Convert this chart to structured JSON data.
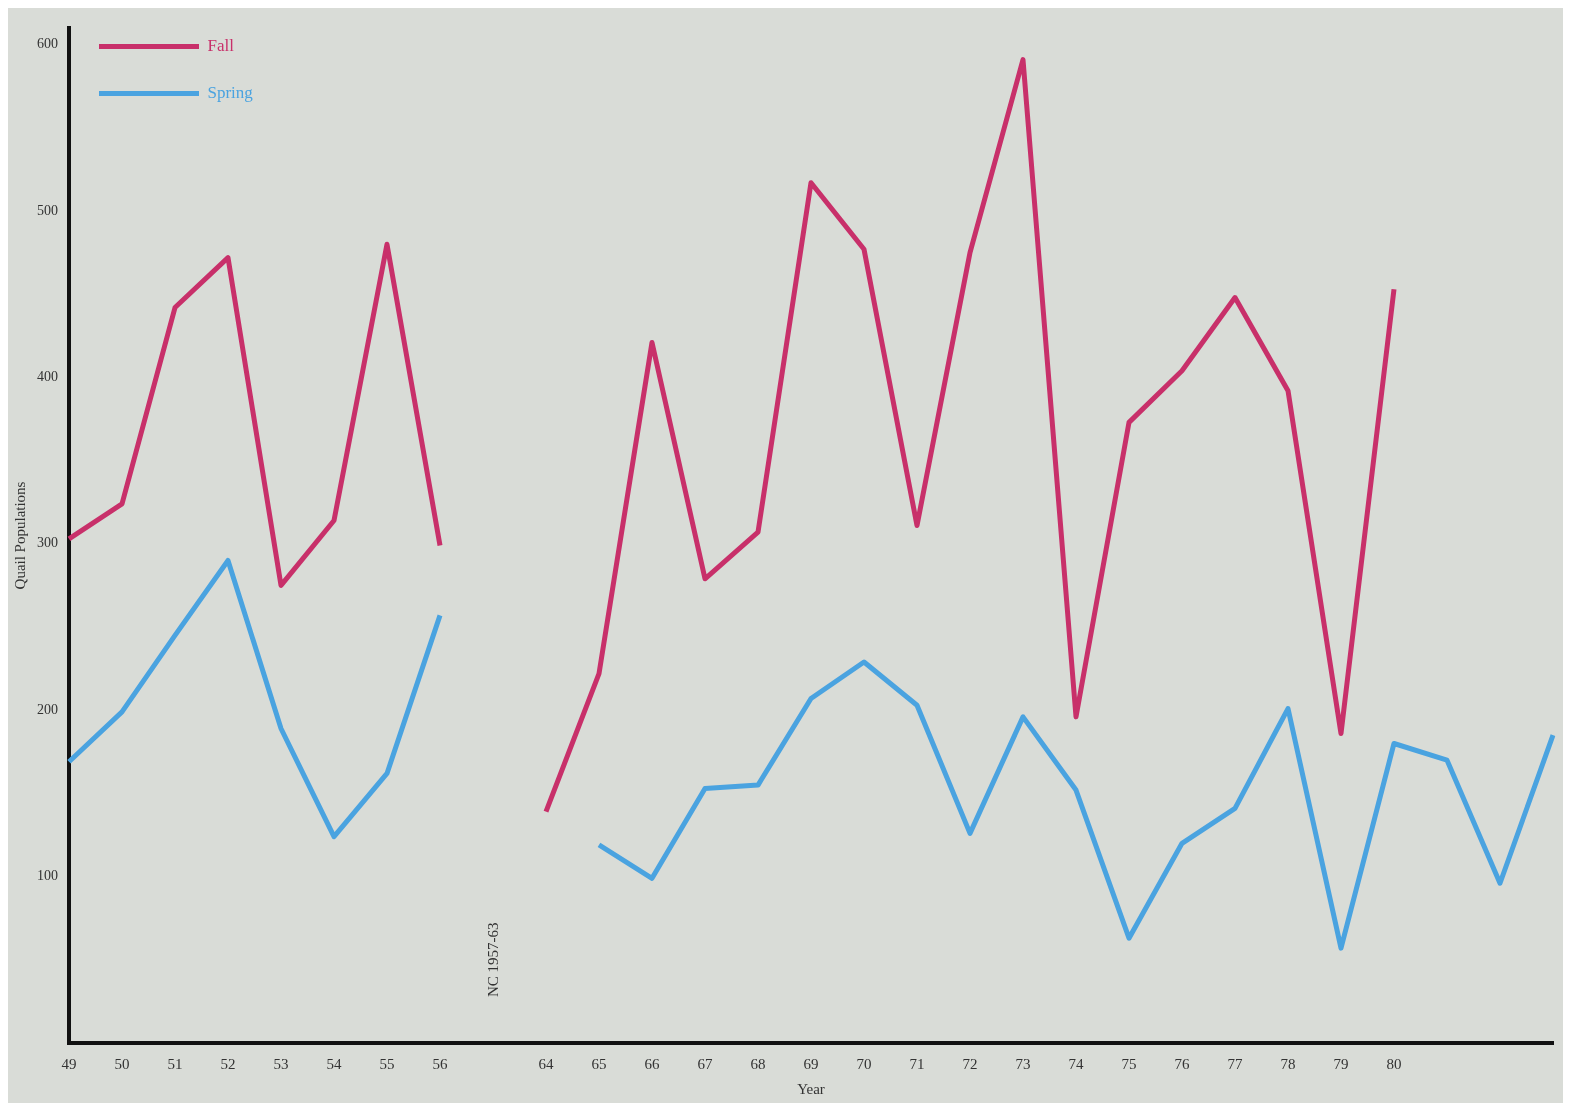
{
  "chart_data": {
    "type": "line",
    "xlabel": "Year",
    "ylabel": "Quail Populations",
    "categories": [
      "49",
      "50",
      "51",
      "52",
      "53",
      "54",
      "55",
      "56",
      null,
      "64",
      "65",
      "66",
      "67",
      "68",
      "69",
      "70",
      "71",
      "72",
      "73",
      "74",
      "75",
      "76",
      "77",
      "78",
      "79",
      "80",
      null,
      null,
      null
    ],
    "series": [
      {
        "name": "Fall",
        "color": "#c8306a",
        "values": [
          303,
          324,
          442,
          472,
          275,
          314,
          480,
          299,
          null,
          139,
          222,
          421,
          279,
          307,
          517,
          477,
          311,
          475,
          591,
          196,
          373,
          404,
          448,
          392,
          186,
          453,
          null,
          null,
          null
        ]
      },
      {
        "name": "Spring",
        "color": "#4aa3e0",
        "values": [
          169,
          199,
          245,
          290,
          189,
          124,
          162,
          257,
          null,
          null,
          119,
          99,
          153,
          155,
          207,
          229,
          203,
          126,
          196,
          152,
          63,
          120,
          141,
          201,
          57,
          180,
          170,
          96,
          185
        ]
      }
    ],
    "ylim": [
      0,
      610
    ],
    "yticks": [
      100,
      200,
      300,
      400,
      500,
      600
    ],
    "annotations": [
      "NC 1957-63"
    ],
    "legend": "top left",
    "grid": false,
    "marker": "none",
    "line_style": "solid"
  }
}
